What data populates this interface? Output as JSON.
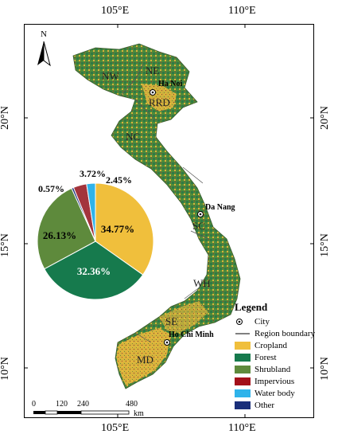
{
  "axes": {
    "top_lon": [
      "105°E",
      "110°E"
    ],
    "bottom_lon": [
      "105°E",
      "110°E"
    ],
    "left_lat": [
      "20°N",
      "15°N",
      "10°N"
    ],
    "right_lat": [
      "20°N",
      "15°N",
      "10°N"
    ]
  },
  "north_arrow": {
    "label": "N"
  },
  "regions": [
    "NW",
    "NE",
    "RRD",
    "NC",
    "SC",
    "WH",
    "SE",
    "MD"
  ],
  "cities": [
    "Ha Noi",
    "Da Nang",
    "Ho Chi Minh"
  ],
  "pie": {
    "slices": [
      {
        "label": "34.77%",
        "value": 34.77,
        "color": "#f0bf3c"
      },
      {
        "label": "32.36%",
        "value": 32.36,
        "color": "#167a4d"
      },
      {
        "label": "26.13%",
        "value": 26.13,
        "color": "#5e8a3c"
      },
      {
        "label": "0.57%",
        "value": 0.57,
        "color": "#1a2f7a"
      },
      {
        "label": "3.72%",
        "value": 3.72,
        "color": "#a3343c"
      },
      {
        "label": "2.45%",
        "value": 2.45,
        "color": "#2fb3ea"
      }
    ]
  },
  "legend": {
    "title": "Legend",
    "items": [
      {
        "label": "City",
        "symbol": "city"
      },
      {
        "label": "Region boundary",
        "symbol": "line"
      },
      {
        "label": "Cropland",
        "color": "#f0bf3c"
      },
      {
        "label": "Forest",
        "color": "#167a4d"
      },
      {
        "label": "Shrubland",
        "color": "#5e8a3c"
      },
      {
        "label": "Impervious",
        "color": "#a3101a"
      },
      {
        "label": "Water body",
        "color": "#2fb3ea"
      },
      {
        "label": "Other",
        "color": "#1a2f7a"
      }
    ]
  },
  "scalebar": {
    "ticks": [
      "0",
      "120",
      "240",
      "480"
    ],
    "unit": "km"
  }
}
